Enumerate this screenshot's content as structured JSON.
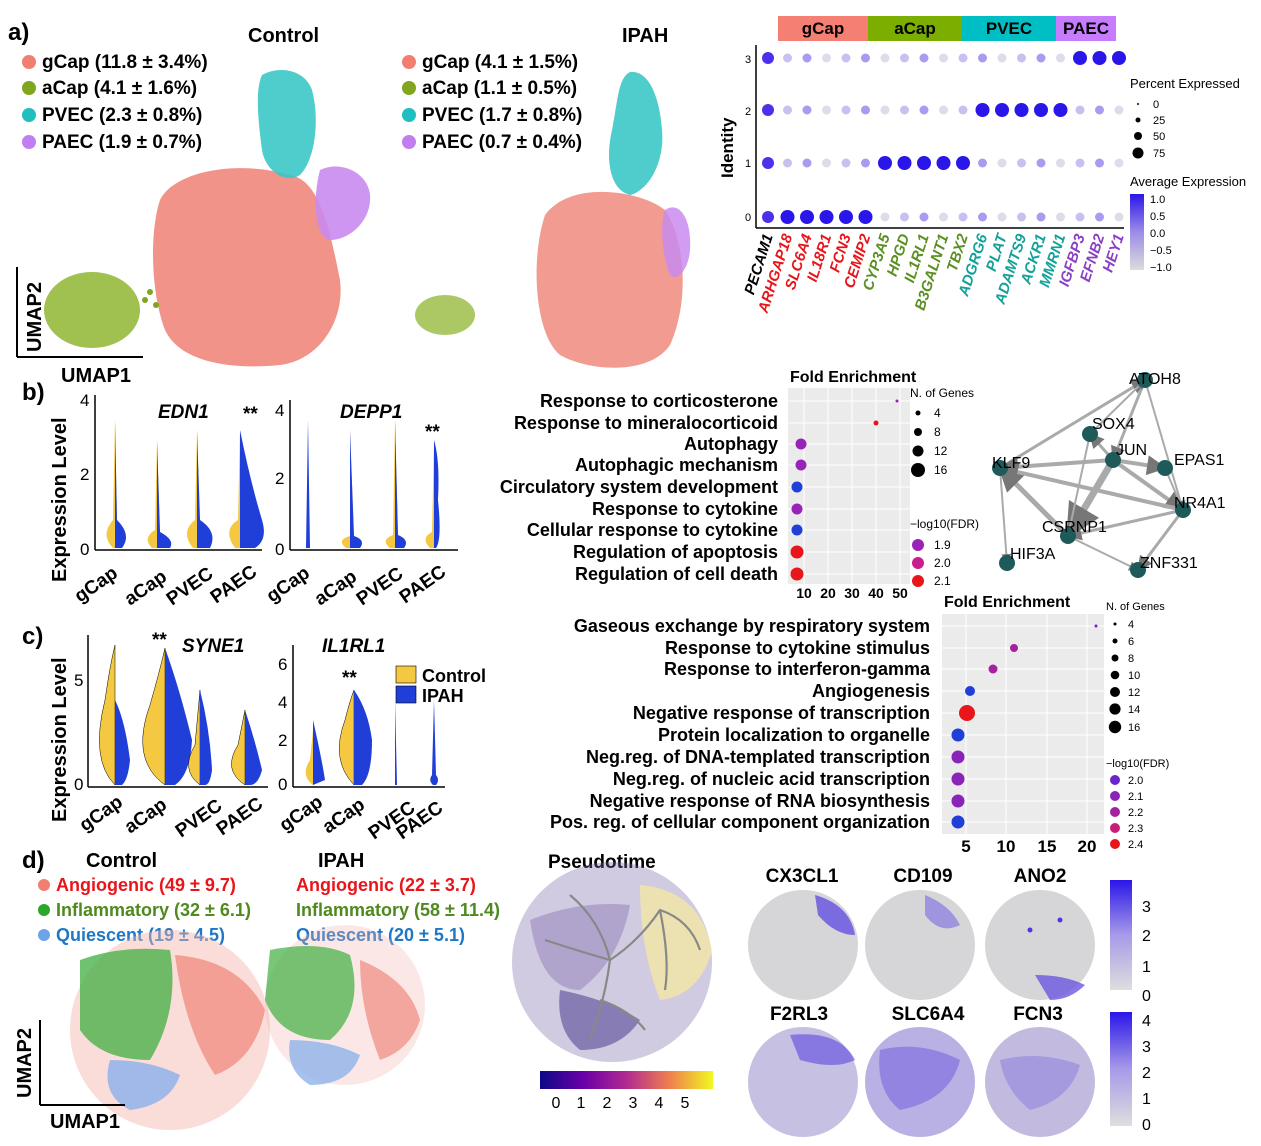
{
  "panel_a": {
    "letter": "a)",
    "control_title": "Control",
    "ipah_title": "IPAH",
    "control_legend": [
      "gCap (11.8 ± 3.4%)",
      "aCap (4.1 ± 1.6%)",
      "PVEC (2.3 ± 0.8%)",
      "PAEC (1.9 ± 0.7%)"
    ],
    "ipah_legend": [
      "gCap (4.1 ± 1.5%)",
      "aCap (1.1 ± 0.5%)",
      "PVEC (1.7 ± 0.8%)",
      "PAEC (0.7 ± 0.4%)"
    ],
    "umap_x": "UMAP1",
    "umap_y": "UMAP2",
    "colors": {
      "gCap": "#f07f72",
      "aCap": "#7fa61e",
      "PVEC": "#1fbfbf",
      "PAEC": "#c07ef0"
    }
  },
  "dotplot": {
    "header": [
      "gCap",
      "aCap",
      "PVEC",
      "PAEC"
    ],
    "header_colors": [
      "#f47f72",
      "#7cae00",
      "#00bfc4",
      "#c77cff"
    ],
    "identity_label": "Identity",
    "identities": [
      "3",
      "2",
      "1",
      "0"
    ],
    "genes": [
      "PECAM1",
      "ARHGAP18",
      "SLC6A4",
      "IL18R1",
      "FCN3",
      "CEMIP2",
      "CYP3A5",
      "HPGD",
      "IL1RL1",
      "B3GALNT1",
      "TBX2",
      "ADGRG6",
      "PLAT",
      "ADAMTS9",
      "ACKR1",
      "MMRN1",
      "IGFBP3",
      "EFNB2",
      "HEY1"
    ],
    "gene_colors": [
      "#000000",
      "#e8151b",
      "#e8151b",
      "#e8151b",
      "#e8151b",
      "#e8151b",
      "#5b8f22",
      "#5b8f22",
      "#5b8f22",
      "#5b8f22",
      "#5b8f22",
      "#13a19a",
      "#13a19a",
      "#13a19a",
      "#13a19a",
      "#13a19a",
      "#8a3fc4",
      "#8a3fc4",
      "#8a3fc4"
    ],
    "pct_title": "Percent Expressed",
    "pct_labels": [
      "0",
      "25",
      "50",
      "75"
    ],
    "avg_title": "Average Expression",
    "avg_labels": [
      "1.0",
      "0.5",
      "0.0",
      "−0.5",
      "−1.0"
    ]
  },
  "panel_b": {
    "letter": "b)",
    "ylabel": "Expression Level",
    "genes": [
      "EDN1",
      "DEPP1"
    ],
    "yticks_1": [
      "4",
      "2",
      "0"
    ],
    "yticks_2": [
      "4",
      "2",
      "0"
    ],
    "sig": "**",
    "celltypes": [
      "gCap",
      "aCap",
      "PVEC",
      "PAEC"
    ],
    "fe_title": "Fold Enrichment",
    "terms": [
      "Response to corticosterone",
      "Response to mineralocorticoid",
      "Autophagy",
      "Autophagic mechanism",
      "Circulatory system development",
      "Response to cytokine",
      "Cellular response to cytokine",
      "Regulation of apoptosis",
      "Regulation of cell death"
    ],
    "x_ticks": [
      "10",
      "20",
      "30",
      "40",
      "50"
    ],
    "n_title": "N. of Genes",
    "n_labels": [
      "4",
      "8",
      "12",
      "16"
    ],
    "fdr_title": "−log10(FDR)",
    "fdr_labels": [
      "1.9",
      "2.0",
      "2.1"
    ],
    "network_nodes": [
      "ATOH8",
      "SOX4",
      "JUN",
      "EPAS1",
      "KLF9",
      "NR4A1",
      "CSRNP1",
      "HIF3A",
      "ZNF331"
    ]
  },
  "panel_c": {
    "letter": "c)",
    "ylabel": "Expression Level",
    "genes": [
      "SYNE1",
      "IL1RL1"
    ],
    "yticks_1": [
      "5",
      "0"
    ],
    "yticks_2": [
      "6",
      "4",
      "2",
      "0"
    ],
    "sig": "**",
    "celltypes": [
      "gCap",
      "aCap",
      "PVEC",
      "PAEC"
    ],
    "legend": [
      "Control",
      "IPAH"
    ],
    "fe_title": "Fold Enrichment",
    "terms": [
      "Gaseous exchange by respiratory system",
      "Response to cytokine stimulus",
      "Response to interferon-gamma",
      "Angiogenesis",
      "Negative response of transcription",
      "Protein localization to organelle",
      "Neg.reg. of DNA-templated transcription",
      "Neg.reg. of nucleic acid transcription",
      "Negative response of RNA biosynthesis",
      "Pos. reg. of cellular component organization"
    ],
    "x_ticks": [
      "5",
      "10",
      "15",
      "20"
    ],
    "n_title": "N. of Genes",
    "n_labels": [
      "4",
      "6",
      "8",
      "10",
      "12",
      "14",
      "16"
    ],
    "fdr_title": "−log10(FDR)",
    "fdr_labels": [
      "2.0",
      "2.1",
      "2.2",
      "2.3",
      "2.4"
    ]
  },
  "panel_d": {
    "letter": "d)",
    "control_title": "Control",
    "ipah_title": "IPAH",
    "control_legend": [
      "Angiogenic (49 ± 9.7)",
      "Inflammatory (32 ± 6.1)",
      "Quiescent (19 ± 4.5)"
    ],
    "ipah_legend": [
      "Angiogenic (22 ± 3.7)",
      "Inflammatory (58 ± 11.4)",
      "Quiescent (20 ± 5.1)"
    ],
    "legend_colors": [
      "#e8151b",
      "#4e8a1e",
      "#1e78c8"
    ],
    "umap_x": "UMAP1",
    "umap_y": "UMAP2",
    "pseudotime_title": "Pseudotime",
    "pseudotime_ticks": [
      "0",
      "1",
      "2",
      "3",
      "4",
      "5"
    ],
    "feature_genes": [
      "CX3CL1",
      "CD109",
      "ANO2",
      "F2RL3",
      "SLC6A4",
      "FCN3"
    ],
    "scale1_ticks": [
      "3",
      "2",
      "1",
      "0"
    ],
    "scale2_ticks": [
      "4",
      "3",
      "2",
      "1",
      "0"
    ]
  }
}
